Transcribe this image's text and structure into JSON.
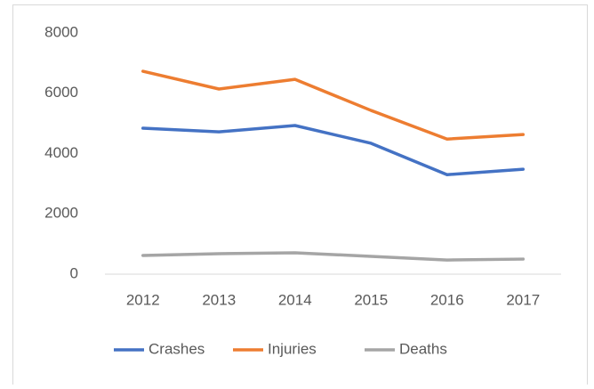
{
  "chart_data": {
    "type": "line",
    "categories": [
      "2012",
      "2013",
      "2014",
      "2015",
      "2016",
      "2017"
    ],
    "series": [
      {
        "name": "Crashes",
        "color": "#4472c4",
        "values": [
          4840,
          4720,
          4930,
          4340,
          3300,
          3480
        ]
      },
      {
        "name": "Injuries",
        "color": "#ed7d31",
        "values": [
          6730,
          6140,
          6460,
          5430,
          4480,
          4630
        ]
      },
      {
        "name": "Deaths",
        "color": "#a5a5a5",
        "values": [
          620,
          680,
          710,
          590,
          470,
          500
        ]
      }
    ],
    "ylim": [
      0,
      8000
    ],
    "yticks": [
      0,
      2000,
      4000,
      6000,
      8000
    ],
    "grid": false,
    "legend": "bottom"
  }
}
